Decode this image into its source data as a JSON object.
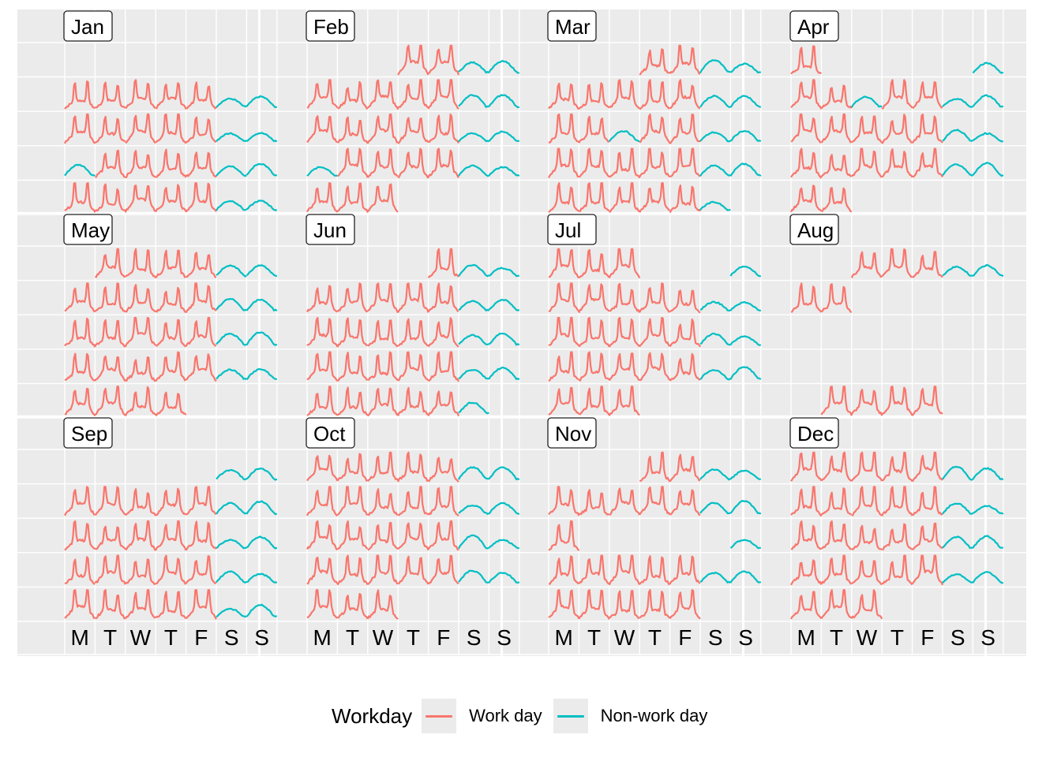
{
  "chart_data": {
    "type": "line",
    "description_free": true,
    "facets": [
      "Jan",
      "Feb",
      "Mar",
      "Apr",
      "May",
      "Jun",
      "Jul",
      "Aug",
      "Sep",
      "Oct",
      "Nov",
      "Dec"
    ],
    "facet_layout": {
      "rows": 3,
      "cols": 4
    },
    "weekday_labels": [
      "M",
      "T",
      "W",
      "T",
      "F",
      "S",
      "S"
    ],
    "weeks_per_month": 5,
    "first_day_column": {
      "Jan": 6,
      "Feb": 3,
      "Mar": 3,
      "Apr": 0,
      "May": 1,
      "Jun": 4,
      "Jul": 0,
      "Aug": 2,
      "Sep": 5,
      "Oct": 0,
      "Nov": 3,
      "Dec": 0
    },
    "days_in_month": {
      "Jan": 31,
      "Feb": 28,
      "Mar": 31,
      "Apr": 30,
      "May": 31,
      "Jun": 30,
      "Jul": 31,
      "Aug": 31,
      "Sep": 30,
      "Oct": 31,
      "Nov": 30,
      "Dec": 31
    },
    "missing_days": {
      "Jan": [
        1
      ],
      "Apr": [
        2,
        3,
        4,
        5,
        6
      ],
      "Jul": [
        4,
        5,
        6
      ],
      "Aug": [
        8,
        9,
        10,
        11,
        12,
        13,
        14,
        15,
        16,
        17,
        18,
        19,
        20,
        21,
        22,
        23,
        24,
        25,
        26,
        27
      ],
      "Sep": [],
      "Nov": [
        13,
        14,
        15,
        16,
        17
      ]
    },
    "non_work_weekdays": {
      "Jan": [
        1,
        16
      ],
      "Feb": [
        19
      ],
      "Mar": [
        14
      ],
      "Apr": [
        10
      ],
      "Jun": [
        9
      ],
      "Nov": [
        10
      ],
      "Dec": []
    },
    "series": [
      {
        "name": "Work day",
        "color": "#F8766D"
      },
      {
        "name": "Non-work day",
        "color": "#00BFC4"
      }
    ],
    "legend": {
      "title": "Workday",
      "position": "bottom"
    }
  },
  "legend": {
    "title": "Workday",
    "items": [
      {
        "label": "Work day",
        "color": "#F8766D"
      },
      {
        "label": "Non-work day",
        "color": "#00BFC4"
      }
    ]
  },
  "colors": {
    "panel": "#ebebeb",
    "grid": "#ffffff",
    "work": "#F8766D",
    "nonwork": "#00BFC4"
  }
}
